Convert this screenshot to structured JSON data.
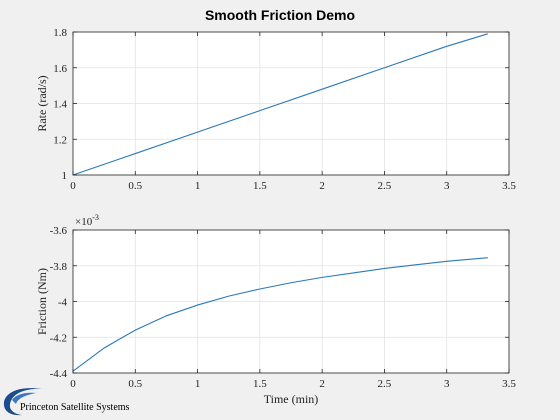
{
  "figure": {
    "title": "Smooth Friction Demo",
    "logo_text": "Princeton Satellite Systems"
  },
  "colors": {
    "background": "#f0f0f0",
    "axes_face": "#ffffff",
    "line": "#2a7ab8",
    "grid": "#e2e2e2",
    "axis": "#262626"
  },
  "chart_data": [
    {
      "type": "line",
      "title": "Smooth Friction Demo",
      "xlabel": "",
      "ylabel": "Rate  (rad/s)",
      "xlim": [
        0,
        3.5
      ],
      "ylim": [
        1,
        1.8
      ],
      "xticks": [
        "0",
        "0.5",
        "1",
        "1.5",
        "2",
        "2.5",
        "3",
        "3.5"
      ],
      "yticks": [
        "1",
        "1.2",
        "1.4",
        "1.6",
        "1.8"
      ],
      "grid": true,
      "series": [
        {
          "x": [
            0,
            0.5,
            1,
            1.5,
            2,
            2.5,
            3,
            3.33
          ],
          "y": [
            1.0,
            1.12,
            1.24,
            1.36,
            1.48,
            1.6,
            1.72,
            1.79
          ]
        }
      ]
    },
    {
      "type": "line",
      "title": "",
      "xlabel": "Time (min)",
      "ylabel": "Friction (Nm)",
      "xlim": [
        0,
        3.5
      ],
      "ylim": [
        -4.4,
        -3.6
      ],
      "y_exponent": "×10",
      "y_exponent_power": "-3",
      "xticks": [
        "0",
        "0.5",
        "1",
        "1.5",
        "2",
        "2.5",
        "3",
        "3.5"
      ],
      "yticks": [
        "-4.4",
        "-4.2",
        "-4",
        "-3.8",
        "-3.6"
      ],
      "grid": true,
      "series": [
        {
          "x": [
            0,
            0.25,
            0.5,
            0.75,
            1,
            1.25,
            1.5,
            1.75,
            2,
            2.25,
            2.5,
            2.75,
            3,
            3.33
          ],
          "y": [
            -4.39,
            -4.26,
            -4.16,
            -4.08,
            -4.02,
            -3.97,
            -3.93,
            -3.895,
            -3.865,
            -3.84,
            -3.815,
            -3.795,
            -3.775,
            -3.755
          ]
        }
      ]
    }
  ]
}
